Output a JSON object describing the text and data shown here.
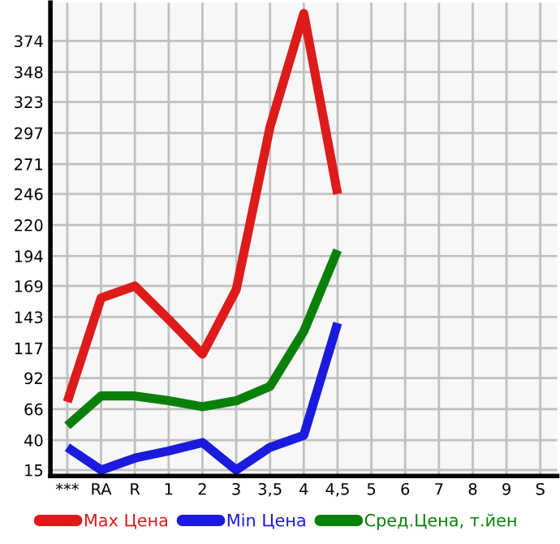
{
  "chart_data": {
    "type": "line",
    "categories": [
      "***",
      "RA",
      "R",
      "1",
      "2",
      "3",
      "3,5",
      "4",
      "4,5",
      "5",
      "6",
      "7",
      "8",
      "9",
      "S"
    ],
    "series": [
      {
        "name": "Max Цена",
        "color": "#dd1b1b",
        "values": [
          72,
          159,
          169,
          141,
          112,
          166,
          302,
          397,
          246,
          null,
          null,
          null,
          null,
          null,
          null
        ]
      },
      {
        "name": "Min Цена",
        "color": "#1b1bdd",
        "values": [
          34,
          15,
          25,
          31,
          38,
          15,
          34,
          44,
          138,
          null,
          null,
          null,
          null,
          null,
          null
        ]
      },
      {
        "name": "Сред.Цена, т.йен",
        "color": "#0a800a",
        "values": [
          52,
          77,
          77,
          73,
          68,
          73,
          85,
          131,
          199,
          null,
          null,
          null,
          null,
          null,
          null
        ]
      }
    ],
    "ylim": [
      10,
      406
    ],
    "yticks": [
      15,
      40,
      66,
      92,
      117,
      143,
      169,
      194,
      220,
      246,
      271,
      297,
      323,
      348,
      374
    ],
    "grid": true,
    "legend": "bottom",
    "marker": "none",
    "line_style": "solid"
  }
}
